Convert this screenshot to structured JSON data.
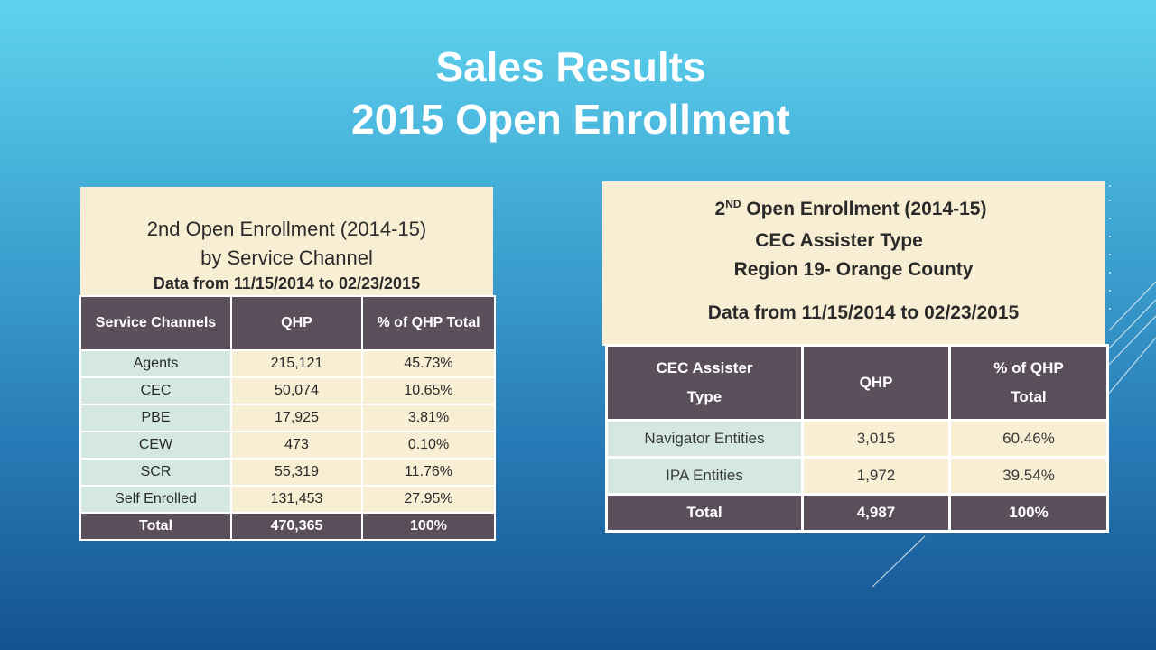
{
  "slide": {
    "title_line1": "Sales Results",
    "title_line2": "2015 Open Enrollment"
  },
  "left_table": {
    "heading1": "2nd Open Enrollment (2014-15)",
    "heading2": "by Service Channel",
    "heading3": "Data from 11/15/2014 to 02/23/2015",
    "columns": [
      "Service Channels",
      "QHP",
      "% of QHP Total"
    ],
    "rows": [
      [
        "Agents",
        "215,121",
        "45.73%"
      ],
      [
        "CEC",
        "50,074",
        "10.65%"
      ],
      [
        "PBE",
        "17,925",
        "3.81%"
      ],
      [
        "CEW",
        "473",
        "0.10%"
      ],
      [
        "SCR",
        "55,319",
        "11.76%"
      ],
      [
        "Self Enrolled",
        "131,453",
        "27.95%"
      ]
    ],
    "total": [
      "Total",
      "470,365",
      "100%"
    ]
  },
  "right_table": {
    "heading1_prefix": "2",
    "heading1_sup": "ND",
    "heading1_rest": " Open Enrollment (2014-15)",
    "heading2": "CEC Assister Type",
    "heading3": "Region 19- Orange County",
    "heading4": "Data from 11/15/2014 to 02/23/2015",
    "columns": {
      "col1_line1": "CEC Assister",
      "col1_line2": "Type",
      "col2": "QHP",
      "col3_line1": "% of QHP",
      "col3_line2": "Total"
    },
    "rows": [
      [
        "Navigator Entities",
        "3,015",
        "60.46%"
      ],
      [
        "IPA Entities",
        "1,972",
        "39.54%"
      ]
    ],
    "total": [
      "Total",
      "4,987",
      "100%"
    ]
  },
  "colors": {
    "header_dark": "#5a4f5a",
    "cell_cream": "#f8eed3",
    "cell_mint": "#d4e8e1",
    "title_white": "#ffffff"
  }
}
